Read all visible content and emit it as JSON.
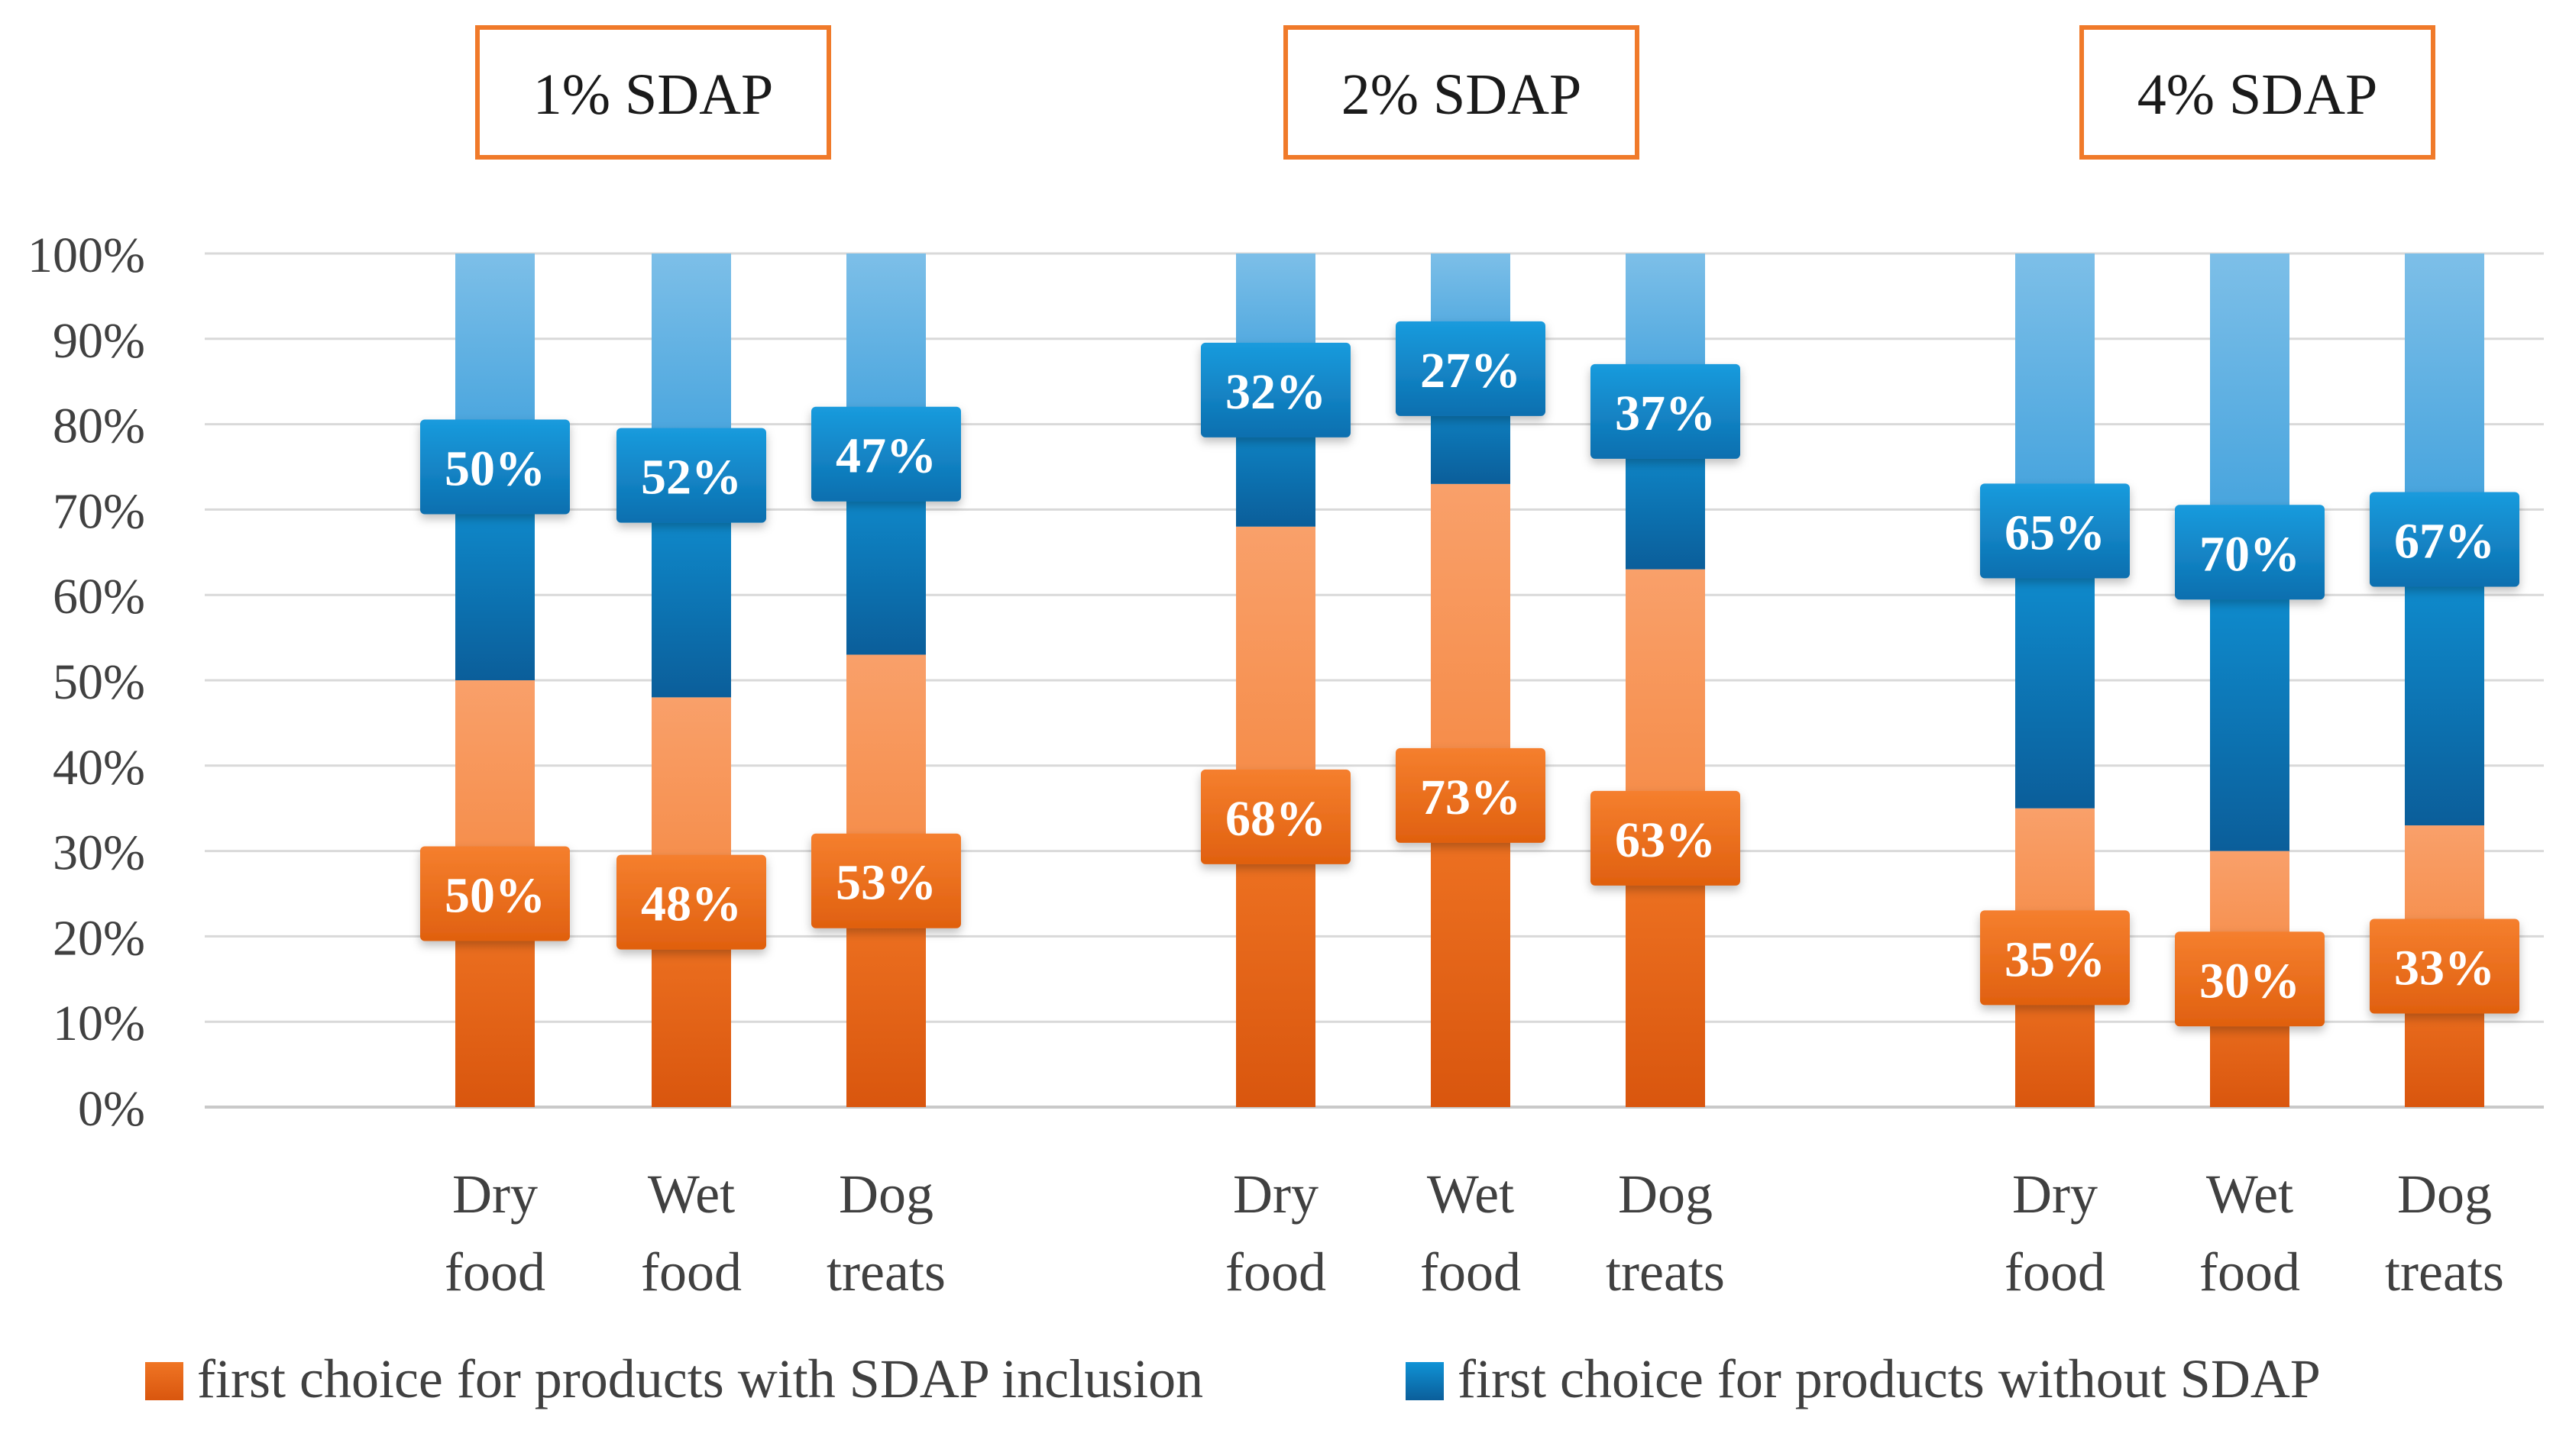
{
  "chart_data": {
    "type": "bar",
    "stacked": true,
    "percent": true,
    "group_labels": [
      "1% SDAP",
      "2% SDAP",
      "4% SDAP"
    ],
    "categories": [
      "Dry food",
      "Wet food",
      "Dog treats"
    ],
    "series": [
      {
        "name": "first choice for products with SDAP inclusion",
        "color": "#F07A2A",
        "values": [
          [
            50,
            48,
            53
          ],
          [
            68,
            73,
            63
          ],
          [
            35,
            30,
            33
          ]
        ],
        "labels": [
          [
            "50%",
            "48%",
            "53%"
          ],
          [
            "68%",
            "73%",
            "63%"
          ],
          [
            "35%",
            "30%",
            "33%"
          ]
        ]
      },
      {
        "name": "first choice for products without SDAP",
        "color": "#1A8FD0",
        "values": [
          [
            50,
            52,
            47
          ],
          [
            32,
            27,
            37
          ],
          [
            65,
            70,
            67
          ]
        ],
        "labels": [
          [
            "50%",
            "52%",
            "47%"
          ],
          [
            "32%",
            "27%",
            "37%"
          ],
          [
            "65%",
            "70%",
            "67%"
          ]
        ]
      }
    ],
    "y_ticks": [
      "0%",
      "10%",
      "20%",
      "30%",
      "40%",
      "50%",
      "60%",
      "70%",
      "80%",
      "90%",
      "100%"
    ],
    "ylim": [
      0,
      100
    ],
    "grid": true,
    "legend_position": "bottom"
  }
}
